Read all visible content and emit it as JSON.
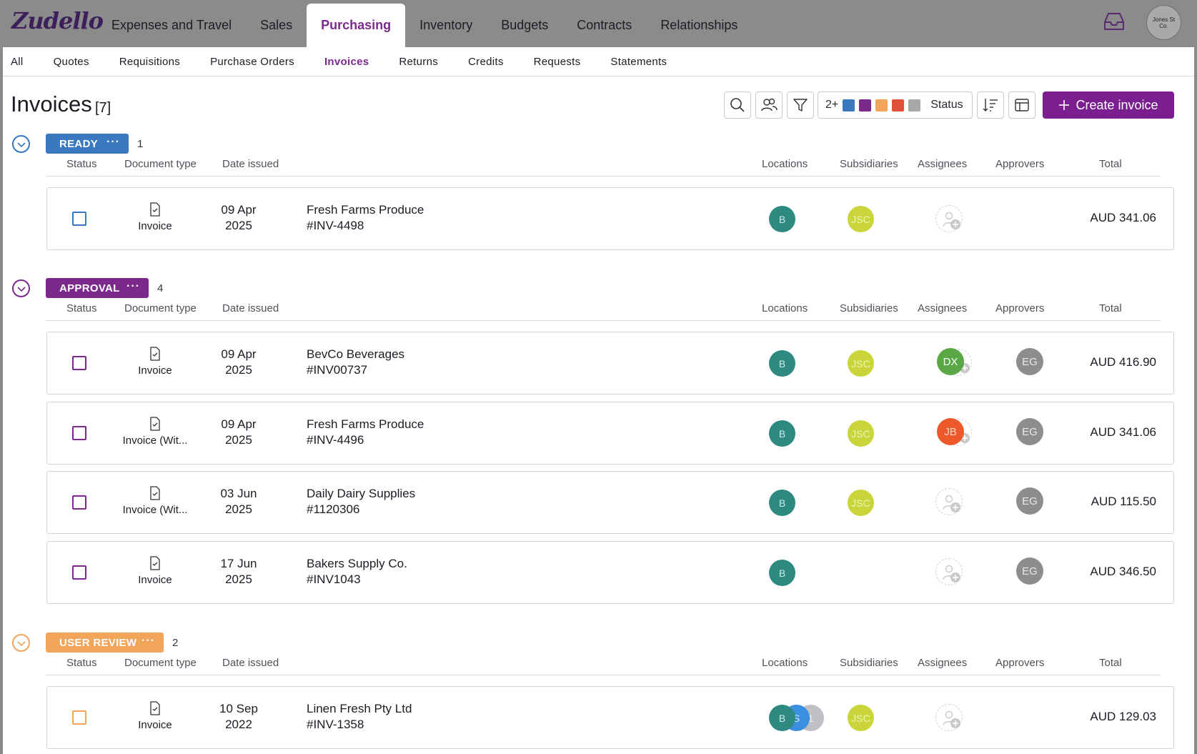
{
  "app": {
    "logo": "Zudello",
    "top_nav": [
      "Expenses and Travel",
      "Sales",
      "Purchasing",
      "Inventory",
      "Budgets",
      "Contracts",
      "Relationships"
    ],
    "active_top_nav": "Purchasing",
    "inbox_icon": "inbox-icon",
    "org_avatar": "Jones St Co."
  },
  "sub_nav": [
    "All",
    "Quotes",
    "Requisitions",
    "Purchase Orders",
    "Invoices",
    "Returns",
    "Credits",
    "Requests",
    "Statements"
  ],
  "active_sub_nav": "Invoices",
  "page": {
    "title": "Invoices",
    "count": "[7]"
  },
  "toolbar": {
    "status_filter_count": "2+",
    "status_filter_label": "Status",
    "status_colors": [
      "#3a78c0",
      "#7b2a8c",
      "#f0a55a",
      "#de5138",
      "#a8a8a8"
    ],
    "create_label": "Create invoice"
  },
  "columns": [
    "Status",
    "Document type",
    "Date issued",
    "Locations",
    "Subsidiaries",
    "Assignees",
    "Approvers",
    "Total"
  ],
  "groups": [
    {
      "label": "READY",
      "color": "#3a78c0",
      "count": "1",
      "rows": [
        {
          "doc_type": "Invoice",
          "date_day": "09 Apr",
          "date_year": "2025",
          "supplier": "Fresh Farms Produce",
          "number": "#INV-4498",
          "location": "B",
          "subsidiary": "JSC",
          "assignee": "",
          "approver": "",
          "total": "AUD 341.06"
        }
      ]
    },
    {
      "label": "APPROVAL",
      "color": "#7b2a8c",
      "count": "4",
      "rows": [
        {
          "doc_type": "Invoice",
          "date_day": "09 Apr",
          "date_year": "2025",
          "supplier": "BevCo Beverages",
          "number": "#INV00737",
          "location": "B",
          "subsidiary": "JSC",
          "assignee": "DX",
          "assignee_color": "#5aa845",
          "approver": "EG",
          "total": "AUD 416.90"
        },
        {
          "doc_type": "Invoice (Wit...",
          "date_day": "09 Apr",
          "date_year": "2025",
          "supplier": "Fresh Farms Produce",
          "number": "#INV-4496",
          "location": "B",
          "subsidiary": "JSC",
          "assignee": "JB",
          "assignee_color": "#ec5a2c",
          "approver": "EG",
          "total": "AUD 341.06"
        },
        {
          "doc_type": "Invoice (Wit...",
          "date_day": "03 Jun",
          "date_year": "2025",
          "supplier": "Daily Dairy Supplies",
          "number": "#1120306",
          "location": "B",
          "subsidiary": "JSC",
          "assignee": "",
          "approver": "EG",
          "total": "AUD 115.50"
        },
        {
          "doc_type": "Invoice",
          "date_day": "17 Jun",
          "date_year": "2025",
          "supplier": "Bakers Supply Co.",
          "number": "#INV1043",
          "location": "B",
          "subsidiary": "",
          "assignee": "",
          "approver": "EG",
          "total": "AUD 346.50"
        }
      ]
    },
    {
      "label": "USER REVIEW",
      "color": "#f0a55a",
      "count": "2",
      "rows": [
        {
          "doc_type": "Invoice",
          "date_day": "10 Sep",
          "date_year": "2022",
          "supplier": "Linen Fresh Pty Ltd",
          "number": "#INV-1358",
          "location": "B",
          "location_2": "S",
          "location_more": "1",
          "subsidiary": "JSC",
          "assignee": "",
          "approver": "",
          "total": "AUD 129.03"
        }
      ]
    }
  ]
}
